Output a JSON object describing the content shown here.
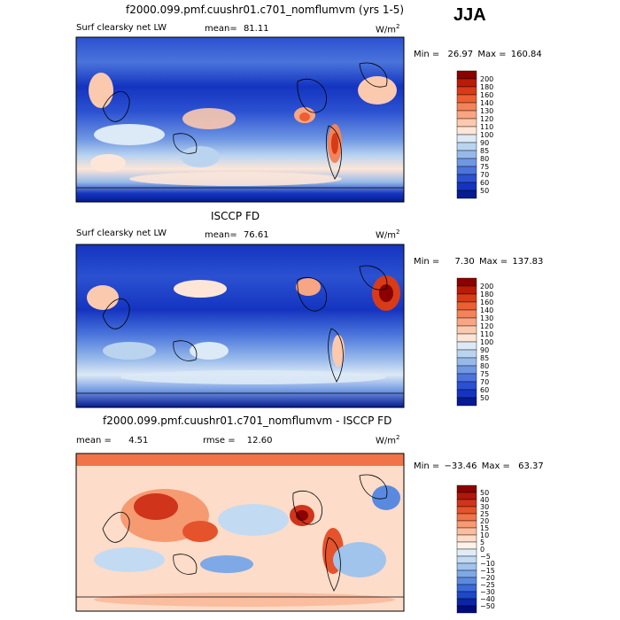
{
  "season": "JJA",
  "panels": [
    {
      "title": "f2000.099.pmf.cuushr01.c701_nomflumvm (yrs 1-5)",
      "field_label": "Surf clearsky net LW",
      "mean_label": "mean=",
      "mean_value": "81.11",
      "units": "W/m",
      "units_sup": "2",
      "min_label": "Min =",
      "min_value": "26.97",
      "max_label": "Max =",
      "max_value": "160.84",
      "colorbar": {
        "levels": [
          "200",
          "180",
          "160",
          "140",
          "130",
          "120",
          "110",
          "100",
          "90",
          "85",
          "80",
          "75",
          "70",
          "60",
          "50"
        ],
        "colors": [
          "#8b0000",
          "#b81c06",
          "#d83b17",
          "#ec5f33",
          "#f4835a",
          "#f8a583",
          "#fbc9ae",
          "#fde6d8",
          "#dce9f6",
          "#bad4f0",
          "#96b9ea",
          "#6f97e2",
          "#4a74db",
          "#2b51d1",
          "#1434c0",
          "#061a91"
        ]
      },
      "chart_data": {
        "type": "heatmap",
        "title": "f2000.099.pmf.cuushr01.c701_nomflumvm (yrs 1-5)",
        "variable": "Surf clearsky net LW",
        "mean": 81.11,
        "min": 26.97,
        "max": 160.84,
        "units": "W/m2",
        "contour_levels": [
          50,
          60,
          70,
          75,
          80,
          85,
          90,
          100,
          110,
          120,
          130,
          140,
          160,
          180,
          200
        ]
      }
    },
    {
      "title": "ISCCP FD",
      "field_label": "Surf clearsky net LW",
      "mean_label": "mean=",
      "mean_value": "76.61",
      "units": "W/m",
      "units_sup": "2",
      "min_label": "Min =",
      "min_value": "7.30",
      "max_label": "Max =",
      "max_value": "137.83",
      "colorbar": {
        "levels": [
          "200",
          "180",
          "160",
          "140",
          "130",
          "120",
          "110",
          "100",
          "90",
          "85",
          "80",
          "75",
          "70",
          "60",
          "50"
        ],
        "colors": [
          "#8b0000",
          "#b81c06",
          "#d83b17",
          "#ec5f33",
          "#f4835a",
          "#f8a583",
          "#fbc9ae",
          "#fde6d8",
          "#dce9f6",
          "#bad4f0",
          "#96b9ea",
          "#6f97e2",
          "#4a74db",
          "#2b51d1",
          "#1434c0",
          "#061a91"
        ]
      },
      "chart_data": {
        "type": "heatmap",
        "title": "ISCCP FD",
        "variable": "Surf clearsky net LW",
        "mean": 76.61,
        "min": 7.3,
        "max": 137.83,
        "units": "W/m2",
        "contour_levels": [
          50,
          60,
          70,
          75,
          80,
          85,
          90,
          100,
          110,
          120,
          130,
          140,
          160,
          180,
          200
        ]
      }
    },
    {
      "title": "f2000.099.pmf.cuushr01.c701_nomflumvm - ISCCP FD",
      "mean_label": "mean =",
      "mean_value": "4.51",
      "rmse_label": "rmse =",
      "rmse_value": "12.60",
      "units": "W/m",
      "units_sup": "2",
      "min_label": "Min =",
      "min_value": "−33.46",
      "max_label": "Max =",
      "max_value": "63.37",
      "colorbar": {
        "levels": [
          "50",
          "40",
          "30",
          "25",
          "20",
          "15",
          "10",
          "5",
          "0",
          "−5",
          "−10",
          "−15",
          "−20",
          "−25",
          "−30",
          "−40",
          "−50"
        ],
        "colors": [
          "#8b0000",
          "#b0180a",
          "#d0341a",
          "#e5532c",
          "#f07447",
          "#f69a72",
          "#fabd9f",
          "#fddcc9",
          "#fff2ea",
          "#e0edf8",
          "#c2dbf2",
          "#a1c4ec",
          "#7ea9e6",
          "#5a8ae0",
          "#3a6ad8",
          "#1f47c9",
          "#0a25a8",
          "#020b7a"
        ]
      },
      "chart_data": {
        "type": "heatmap",
        "title": "f2000.099.pmf.cuushr01.c701_nomflumvm - ISCCP FD",
        "variable": "difference",
        "mean": 4.51,
        "rmse": 12.6,
        "min": -33.46,
        "max": 63.37,
        "units": "W/m2",
        "contour_levels": [
          -50,
          -40,
          -30,
          -25,
          -20,
          -15,
          -10,
          -5,
          0,
          5,
          10,
          15,
          20,
          25,
          30,
          40,
          50
        ]
      }
    }
  ]
}
